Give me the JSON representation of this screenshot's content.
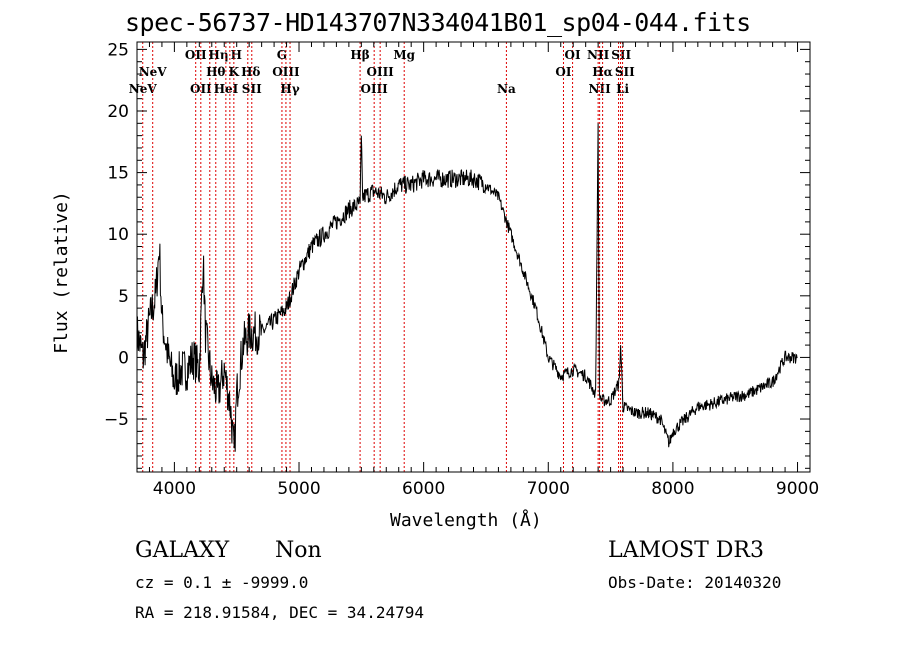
{
  "chart_data": {
    "type": "line",
    "title": "spec-56737-HD143707N334041B01_sp04-044.fits",
    "xlabel": "Wavelength (Å)",
    "ylabel": "Flux (relative)",
    "xlim": [
      3700,
      9100
    ],
    "ylim": [
      -9.3,
      25.6
    ],
    "xticks": [
      4000,
      5000,
      6000,
      7000,
      8000,
      9000
    ],
    "yticks": [
      -5,
      0,
      5,
      10,
      15,
      20,
      25
    ],
    "grid": false,
    "series": [
      {
        "name": "flux",
        "color": "#000000",
        "x": [
          3700,
          3750,
          3800,
          3850,
          3880,
          3900,
          3950,
          4000,
          4050,
          4100,
          4150,
          4200,
          4230,
          4250,
          4300,
          4350,
          4400,
          4450,
          4480,
          4500,
          4550,
          4600,
          4700,
          4800,
          4900,
          5000,
          5100,
          5200,
          5300,
          5400,
          5490,
          5500,
          5510,
          5600,
          5700,
          5800,
          5900,
          6000,
          6100,
          6200,
          6300,
          6400,
          6500,
          6600,
          6700,
          6800,
          6900,
          7000,
          7100,
          7200,
          7300,
          7380,
          7400,
          7410,
          7430,
          7500,
          7570,
          7580,
          7600,
          7700,
          7800,
          7900,
          7970,
          8000,
          8100,
          8200,
          8300,
          8400,
          8500,
          8600,
          8700,
          8800,
          8900,
          9000
        ],
        "y": [
          2,
          0,
          3,
          5,
          9,
          3,
          0,
          -2,
          -1,
          -1,
          0,
          -1,
          8,
          2,
          -2,
          -3,
          -1,
          -4,
          -8,
          -3,
          1,
          2,
          2,
          3,
          4,
          7,
          9,
          10,
          11,
          12,
          12.5,
          18,
          13,
          13.5,
          13,
          14,
          14,
          14.5,
          14.5,
          14.5,
          14.5,
          14.5,
          14,
          13,
          10,
          7,
          4,
          0,
          -1.5,
          -1,
          -1.5,
          -3,
          19,
          -3,
          -3.5,
          -3.5,
          -2,
          1,
          -4,
          -4.5,
          -4.5,
          -5,
          -7,
          -6,
          -5,
          -4,
          -3.8,
          -3.5,
          -3.2,
          -3,
          -2.5,
          -2,
          0,
          0
        ]
      }
    ],
    "lines": [
      {
        "label": "NeV",
        "row": 3,
        "w": 3746
      },
      {
        "label": "NeV",
        "row": 2,
        "w": 3826
      },
      {
        "label": "OII",
        "row": 1,
        "w": 4171
      },
      {
        "label": "OII",
        "row": 3,
        "w": 4212
      },
      {
        "label": "Hη",
        "row": 1,
        "w": 4284
      },
      {
        "label": "Hθ",
        "row": 2,
        "w": 4332
      },
      {
        "label": "HeI",
        "row": 3,
        "w": 4413
      },
      {
        "label": "H",
        "row": 1,
        "w": 4445
      },
      {
        "label": "K",
        "row": 2,
        "w": 4477
      },
      {
        "label": "Hδ",
        "row": 2,
        "w": 4589
      },
      {
        "label": "SII",
        "row": 3,
        "w": 4621
      },
      {
        "label": "G",
        "row": 1,
        "w": 4863
      },
      {
        "label": "OIII",
        "row": 2,
        "w": 4895
      },
      {
        "label": "Hγ",
        "row": 3,
        "w": 4928
      },
      {
        "label": "Hβ",
        "row": 1,
        "w": 5490
      },
      {
        "label": "OIII",
        "row": 3,
        "w": 5603
      },
      {
        "label": "OIII",
        "row": 2,
        "w": 5651
      },
      {
        "label": "Mg",
        "row": 1,
        "w": 5844
      },
      {
        "label": "Na",
        "row": 3,
        "w": 6664
      },
      {
        "label": "OI",
        "row": 2,
        "w": 7122
      },
      {
        "label": "OI",
        "row": 1,
        "w": 7195
      },
      {
        "label": "NII",
        "row": 3,
        "w": 7412
      },
      {
        "label": "NII",
        "row": 1,
        "w": 7400
      },
      {
        "label": "Hα",
        "row": 2,
        "w": 7436
      },
      {
        "label": "SII",
        "row": 1,
        "w": 7564
      },
      {
        "label": "SII",
        "row": 2,
        "w": 7580
      },
      {
        "label": "Li",
        "row": 3,
        "w": 7596
      }
    ]
  },
  "info": {
    "class": "GALAXY",
    "subclass": "Non",
    "cz": "cz = 0.1 ± -9999.0",
    "radec": "RA = 218.91584, DEC =  34.24794",
    "survey": "LAMOST DR3",
    "obsdate": "Obs-Date: 20140320"
  }
}
